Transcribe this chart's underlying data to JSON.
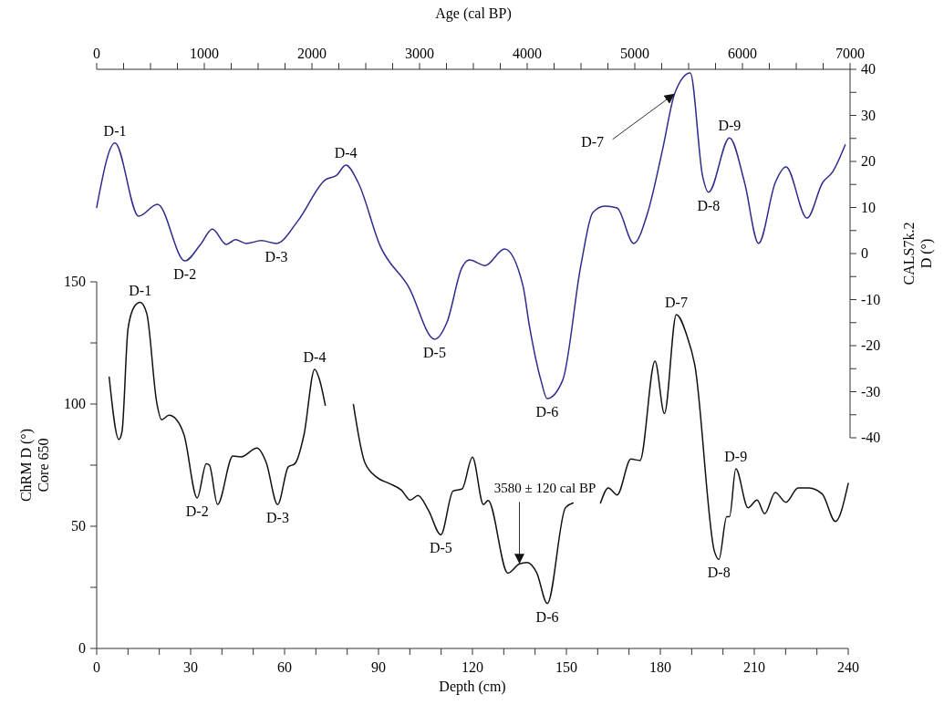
{
  "chart_data": [
    {
      "type": "line",
      "xlabel": "Age (cal BP)",
      "ylabel": "CALS7k.2\nD (°)",
      "xlim": [
        0,
        7000
      ],
      "xticks": [
        0,
        {
          "value": 250,
          "label": null
        },
        {
          "value": 500,
          "label": null
        },
        {
          "value": 750,
          "label": null
        },
        1000,
        {
          "value": 1250,
          "label": null
        },
        {
          "value": 1500,
          "label": null
        },
        {
          "value": 1750,
          "label": null
        },
        2000,
        {
          "value": 2250,
          "label": null
        },
        {
          "value": 2500,
          "label": null
        },
        {
          "value": 2750,
          "label": null
        },
        3000,
        {
          "value": 3250,
          "label": null
        },
        {
          "value": 3500,
          "label": null
        },
        {
          "value": 3750,
          "label": null
        },
        4000,
        {
          "value": 4250,
          "label": null
        },
        {
          "value": 4500,
          "label": null
        },
        {
          "value": 4750,
          "label": null
        },
        5000,
        {
          "value": 5250,
          "label": null
        },
        {
          "value": 5500,
          "label": null
        },
        {
          "value": 5750,
          "label": null
        },
        6000,
        {
          "value": 6250,
          "label": null
        },
        {
          "value": 6500,
          "label": null
        },
        {
          "value": 6750,
          "label": null
        },
        7000
      ],
      "ylim": [
        -40,
        40
      ],
      "yticks": [
        -40,
        {
          "value": -35,
          "label": null
        },
        -30,
        {
          "value": -25,
          "label": null
        },
        -20,
        {
          "value": -15,
          "label": null
        },
        -10,
        {
          "value": -5,
          "label": null
        },
        0,
        {
          "value": 5,
          "label": null
        },
        10,
        {
          "value": 15,
          "label": null
        },
        20,
        {
          "value": 25,
          "label": null
        },
        30,
        {
          "value": 35,
          "label": null
        },
        40
      ],
      "x": [
        0,
        170,
        390,
        565,
        820,
        965,
        1075,
        1205,
        1290,
        1390,
        1530,
        1670,
        1870,
        2125,
        2230,
        2315,
        2430,
        2635,
        2900,
        3140,
        3255,
        3395,
        3465,
        3610,
        3790,
        3960,
        4020,
        4130,
        4185,
        4330,
        4500,
        4610,
        4720,
        4835,
        4990,
        5120,
        5260,
        5370,
        5515,
        5630,
        5685,
        5880,
        6020,
        6150,
        6305,
        6405,
        6600,
        6745,
        6840,
        6955
      ],
      "series": [
        {
          "color": "#2e2c8c",
          "values": [
            10,
            24,
            8.1,
            10.7,
            -1.6,
            2,
            5.3,
            2,
            3,
            2.2,
            2.8,
            2.2,
            7.1,
            16,
            17,
            19.2,
            15.4,
            1.6,
            -7.3,
            -18.6,
            -14.9,
            -3,
            -1.4,
            -2.6,
            1,
            -6.9,
            -15.6,
            -27.7,
            -31.5,
            -27.5,
            -2.4,
            8.9,
            10.3,
            9.9,
            2.2,
            8.9,
            22.8,
            34.7,
            39.2,
            16.8,
            13.3,
            25.1,
            15.4,
            2.2,
            15.4,
            18.8,
            7.7,
            15.4,
            17.8,
            23.6
          ]
        }
      ],
      "line_style": "solid",
      "marker": "none",
      "grid": false,
      "annotations": [
        {
          "text": "D-1",
          "x": 170,
          "y": 24
        },
        {
          "text": "D-2",
          "x": 820,
          "y": -1.6
        },
        {
          "text": "D-3",
          "x": 1670,
          "y": 2.2
        },
        {
          "text": "D-4",
          "x": 2315,
          "y": 19.2
        },
        {
          "text": "D-5",
          "x": 3140,
          "y": -18.6
        },
        {
          "text": "D-6",
          "x": 4185,
          "y": -31.5
        },
        {
          "text": "D-7",
          "x": 5370,
          "y": 34.7
        },
        {
          "text": "D-8",
          "x": 5685,
          "y": 13.3
        },
        {
          "text": "D-9",
          "x": 5880,
          "y": 25.1
        }
      ]
    },
    {
      "type": "line",
      "xlabel": "Depth (cm)",
      "ylabel": "ChRM D (°)\nCore 650",
      "xlim": [
        0,
        240
      ],
      "xticks": [
        0,
        {
          "value": 10,
          "label": null
        },
        {
          "value": 20,
          "label": null
        },
        30,
        {
          "value": 40,
          "label": null
        },
        {
          "value": 50,
          "label": null
        },
        60,
        {
          "value": 70,
          "label": null
        },
        {
          "value": 80,
          "label": null
        },
        90,
        {
          "value": 100,
          "label": null
        },
        {
          "value": 110,
          "label": null
        },
        120,
        {
          "value": 130,
          "label": null
        },
        {
          "value": 140,
          "label": null
        },
        150,
        {
          "value": 160,
          "label": null
        },
        {
          "value": 170,
          "label": null
        },
        180,
        {
          "value": 190,
          "label": null
        },
        {
          "value": 200,
          "label": null
        },
        210,
        {
          "value": 220,
          "label": null
        },
        {
          "value": 230,
          "label": null
        },
        240
      ],
      "ylim": [
        0,
        150
      ],
      "yticks": [
        0,
        {
          "value": 25,
          "label": null
        },
        50,
        {
          "value": 75,
          "label": null
        },
        100,
        {
          "value": 125,
          "label": null
        },
        150
      ],
      "x": [
        4,
        7.1,
        8.1,
        10,
        12.1,
        13.9,
        16,
        19.2,
        20.7,
        23.1,
        25.5,
        27.9,
        32.1,
        35,
        36,
        38.6,
        43.5,
        46.1,
        51.2,
        54.1,
        57.8,
        61.2,
        63.3,
        66.2,
        69.6,
        71.1,
        73,
        77.5,
        82,
        85.6,
        89.5,
        93.4,
        97.3,
        100.2,
        102.6,
        106,
        109.9,
        113.8,
        116.7,
        120,
        123.5,
        125,
        131.3,
        135,
        137.5,
        140.5,
        143.9,
        149.7,
        152.1,
        156.5,
        160.9,
        163.4,
        166.2,
        170.6,
        173.5,
        178.3,
        181.3,
        185.1,
        188.5,
        191,
        197.3,
        198.7,
        201.2,
        202.1,
        204.1,
        208,
        210.9,
        213.3,
        216.7,
        220.1,
        224,
        227.4,
        231.7,
        235.9,
        240
      ],
      "series": [
        {
          "color": "#111111",
          "values": [
            111,
            85.5,
            88.8,
            130.7,
            140,
            141.6,
            137,
            100.4,
            93.6,
            95.4,
            93.6,
            87.4,
            61.6,
            75.6,
            75,
            58.9,
            78.7,
            78.4,
            82,
            76.2,
            58.9,
            74.3,
            75.6,
            87.4,
            114.2,
            110.3,
            99.5,
            null,
            99.8,
            76.2,
            70,
            67.5,
            64.8,
            60.7,
            62.6,
            56.4,
            46.5,
            64.4,
            65.3,
            78.3,
            58.9,
            60.5,
            30.8,
            34.6,
            35.2,
            31,
            18.4,
            57.6,
            59.5,
            null,
            59.5,
            65.7,
            62.8,
            77.5,
            76.9,
            117.5,
            96.1,
            136.6,
            127.9,
            116,
            39.6,
            36.4,
            53.9,
            53.9,
            73.5,
            57.6,
            60.7,
            55.1,
            63.8,
            59.8,
            65.7,
            65.7,
            63.2,
            52,
            67.5
          ]
        }
      ],
      "line_style": "solid",
      "marker": "none",
      "grid": false,
      "annotations": [
        {
          "text": "D-1",
          "x": 13.9,
          "y": 141.6
        },
        {
          "text": "D-2",
          "x": 32.1,
          "y": 61.6
        },
        {
          "text": "D-3",
          "x": 57.8,
          "y": 58.9
        },
        {
          "text": "D-4",
          "x": 69.6,
          "y": 114.2
        },
        {
          "text": "D-5",
          "x": 109.9,
          "y": 46.5
        },
        {
          "text": "3580 ± 120 cal BP",
          "x": 135,
          "y": 34.6
        },
        {
          "text": "D-6",
          "x": 143.9,
          "y": 18.4
        },
        {
          "text": "D-7",
          "x": 185.1,
          "y": 136.6
        },
        {
          "text": "D-8",
          "x": 198.7,
          "y": 36.4
        },
        {
          "text": "D-9",
          "x": 204.1,
          "y": 73.5
        }
      ]
    }
  ]
}
